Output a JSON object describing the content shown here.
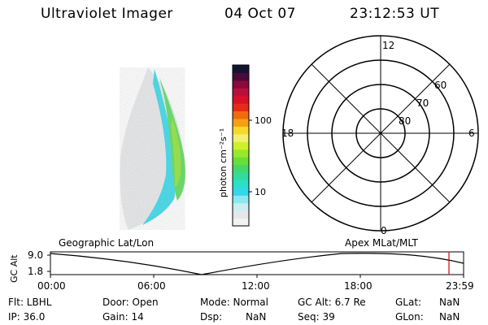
{
  "header": {
    "title": "Ultraviolet Imager",
    "date": "04 Oct 07",
    "time": "23:12:53 UT"
  },
  "colorbar": {
    "unit_label": "photon cm⁻²s⁻¹",
    "tick_100": "100",
    "tick_10": "10",
    "colors": [
      "#f2f2f2",
      "#e6e6ea",
      "#c8eef2",
      "#8be8ef",
      "#33d6ea",
      "#2ae0c8",
      "#30dca0",
      "#44d86a",
      "#66e038",
      "#99e82a",
      "#cff028",
      "#f2f070",
      "#f8d82a",
      "#f5a010",
      "#f06a10",
      "#e82a18",
      "#d8102a",
      "#b8103a",
      "#8a0a3c",
      "#4a0a3a",
      "#141432"
    ]
  },
  "polar": {
    "label_12": "12",
    "label_18": "18",
    "label_6": "6",
    "label_0": "0",
    "ring_60": "60",
    "ring_70": "70",
    "ring_80": "80"
  },
  "altitude_plot": {
    "left_title": "Geographic Lat/Lon",
    "right_title": "Apex  MLat/MLT",
    "axis_label": "GC Alt",
    "y_max": "9.0",
    "y_min": "1.8",
    "x_ticks": [
      "00:00",
      "06:00",
      "12:00",
      "18:00",
      "23:59"
    ],
    "marker_color": "#d80000"
  },
  "info": {
    "row1": [
      "Flt: LBHL",
      "Door: Open",
      "Mode: Normal",
      "GC Alt: 6.7 Re",
      "GLat:",
      "NaN"
    ],
    "row2": [
      "IP: 36.0",
      "Gain: 14",
      "Dsp:",
      "NaN",
      "Seq: 39",
      "GLon:",
      "NaN"
    ]
  }
}
